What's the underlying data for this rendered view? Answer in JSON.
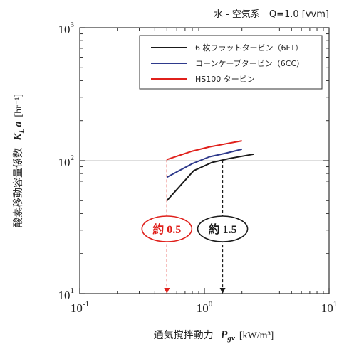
{
  "chart_data": {
    "type": "line",
    "condition": "水 - 空気系　Q=1.0 [vvm]",
    "xlabel": "通気撹拌動力",
    "xlabel_symbol": "P",
    "xlabel_subscript": "gv",
    "xlabel_unit": "[kW/m³]",
    "ylabel": "酸素移動容量係数",
    "ylabel_symbol": "K",
    "ylabel_subscript": "L",
    "ylabel_symbol2": "a",
    "ylabel_unit": "[hr⁻¹]",
    "x_scale": "log",
    "y_scale": "log",
    "xlim": [
      0.1,
      10
    ],
    "ylim": [
      10,
      1000
    ],
    "x_ticks": [
      {
        "base": "10",
        "exp": "-1",
        "value": 0.1
      },
      {
        "base": "10",
        "exp": "0",
        "value": 1
      },
      {
        "base": "10",
        "exp": "1",
        "value": 10
      }
    ],
    "y_ticks": [
      {
        "base": "10",
        "exp": "1",
        "value": 10
      },
      {
        "base": "10",
        "exp": "2",
        "value": 100
      },
      {
        "base": "10",
        "exp": "3",
        "value": 1000
      }
    ],
    "legend_position": "top-right",
    "reference_line": {
      "y": 100,
      "color": "#bdbdbd"
    },
    "series": [
      {
        "name": "6 枚フラットタービン（6FT）",
        "color": "#1a1a1a",
        "x": [
          0.5,
          0.82,
          1.15,
          1.6,
          2.5
        ],
        "y": [
          50,
          84,
          97,
          104,
          112
        ]
      },
      {
        "name": "コーンケーブタービン（6CC）",
        "color": "#2e3a8c",
        "x": [
          0.5,
          0.8,
          1.1,
          1.5,
          2.0
        ],
        "y": [
          75,
          95,
          107,
          114,
          122
        ]
      },
      {
        "name": "HS100 タービン",
        "color": "#e0201b",
        "x": [
          0.5,
          0.8,
          1.1,
          1.5,
          2.0
        ],
        "y": [
          102,
          118,
          127,
          134,
          141
        ]
      }
    ],
    "annotations": [
      {
        "label": "約 0.5",
        "x": 0.5,
        "color": "#e0201b",
        "label_color": "#e0201b",
        "ring_color": "#e0201b"
      },
      {
        "label": "約 1.5",
        "x": 1.4,
        "color": "#1a1a1a",
        "label_color": "#1a1a1a",
        "ring_color": "#1a1a1a"
      }
    ]
  }
}
